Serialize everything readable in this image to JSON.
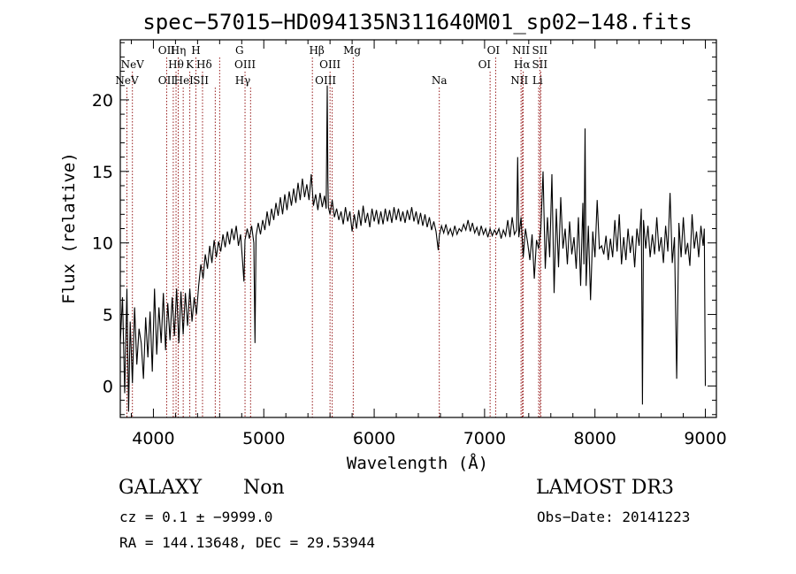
{
  "chart_data": {
    "type": "line",
    "title": "spec−57015−HD094135N311640M01_sp02−148.fits",
    "xlabel": "Wavelength (Å)",
    "ylabel": "Flux (relative)",
    "xlim": [
      3700,
      9100
    ],
    "ylim": [
      -2.2,
      24.2
    ],
    "x_ticks": [
      4000,
      5000,
      6000,
      7000,
      8000,
      9000
    ],
    "y_ticks": [
      0,
      5,
      10,
      15,
      20
    ],
    "grid": false,
    "line_color": "#000000",
    "marker_color": "#8b0000",
    "series": [
      {
        "points": [
          [
            3700,
            3.0
          ],
          [
            3720,
            6.2
          ],
          [
            3740,
            -0.5
          ],
          [
            3760,
            6.8
          ],
          [
            3775,
            -1.8
          ],
          [
            3790,
            4.5
          ],
          [
            3810,
            0.2
          ],
          [
            3830,
            5.5
          ],
          [
            3850,
            1.5
          ],
          [
            3870,
            4.0
          ],
          [
            3890,
            3.0
          ],
          [
            3910,
            0.5
          ],
          [
            3930,
            4.8
          ],
          [
            3950,
            2.0
          ],
          [
            3970,
            5.2
          ],
          [
            3990,
            1.0
          ],
          [
            4010,
            6.8
          ],
          [
            4030,
            2.2
          ],
          [
            4050,
            5.5
          ],
          [
            4070,
            3.0
          ],
          [
            4090,
            6.5
          ],
          [
            4110,
            2.5
          ],
          [
            4130,
            5.8
          ],
          [
            4150,
            3.2
          ],
          [
            4170,
            6.2
          ],
          [
            4190,
            3.5
          ],
          [
            4210,
            6.8
          ],
          [
            4230,
            3.0
          ],
          [
            4250,
            6.6
          ],
          [
            4270,
            3.6
          ],
          [
            4290,
            6.5
          ],
          [
            4310,
            4.2
          ],
          [
            4330,
            6.8
          ],
          [
            4350,
            4.5
          ],
          [
            4370,
            6.2
          ],
          [
            4390,
            5.0
          ],
          [
            4410,
            7.0
          ],
          [
            4430,
            8.5
          ],
          [
            4450,
            7.5
          ],
          [
            4470,
            9.2
          ],
          [
            4490,
            8.2
          ],
          [
            4510,
            9.8
          ],
          [
            4530,
            8.6
          ],
          [
            4550,
            10.2
          ],
          [
            4570,
            9.0
          ],
          [
            4590,
            10.1
          ],
          [
            4610,
            9.4
          ],
          [
            4630,
            10.6
          ],
          [
            4650,
            9.7
          ],
          [
            4670,
            10.8
          ],
          [
            4690,
            9.9
          ],
          [
            4710,
            11.0
          ],
          [
            4730,
            10.2
          ],
          [
            4750,
            11.2
          ],
          [
            4770,
            9.8
          ],
          [
            4790,
            10.6
          ],
          [
            4810,
            8.5
          ],
          [
            4820,
            7.3
          ],
          [
            4830,
            10.2
          ],
          [
            4850,
            11.0
          ],
          [
            4870,
            10.3
          ],
          [
            4890,
            11.2
          ],
          [
            4910,
            10.0
          ],
          [
            4920,
            3.0
          ],
          [
            4930,
            10.5
          ],
          [
            4950,
            11.4
          ],
          [
            4970,
            10.6
          ],
          [
            4990,
            11.6
          ],
          [
            5010,
            10.9
          ],
          [
            5030,
            12.2
          ],
          [
            5050,
            11.2
          ],
          [
            5070,
            12.4
          ],
          [
            5090,
            11.6
          ],
          [
            5110,
            12.8
          ],
          [
            5130,
            11.9
          ],
          [
            5150,
            13.2
          ],
          [
            5170,
            12.0
          ],
          [
            5190,
            13.4
          ],
          [
            5210,
            12.3
          ],
          [
            5230,
            13.6
          ],
          [
            5250,
            12.6
          ],
          [
            5270,
            13.8
          ],
          [
            5290,
            12.8
          ],
          [
            5310,
            14.2
          ],
          [
            5330,
            13.0
          ],
          [
            5350,
            14.5
          ],
          [
            5370,
            13.2
          ],
          [
            5390,
            14.1
          ],
          [
            5410,
            13.0
          ],
          [
            5430,
            14.8
          ],
          [
            5450,
            12.6
          ],
          [
            5470,
            13.4
          ],
          [
            5490,
            12.3
          ],
          [
            5510,
            13.5
          ],
          [
            5530,
            12.5
          ],
          [
            5550,
            13.3
          ],
          [
            5565,
            12.4
          ],
          [
            5575,
            21.0
          ],
          [
            5580,
            14.5
          ],
          [
            5585,
            12.5
          ],
          [
            5600,
            12.0
          ],
          [
            5620,
            13.0
          ],
          [
            5640,
            11.8
          ],
          [
            5660,
            12.4
          ],
          [
            5680,
            11.6
          ],
          [
            5700,
            12.2
          ],
          [
            5720,
            11.3
          ],
          [
            5740,
            12.5
          ],
          [
            5760,
            11.5
          ],
          [
            5780,
            12.2
          ],
          [
            5800,
            10.8
          ],
          [
            5820,
            12.0
          ],
          [
            5840,
            11.0
          ],
          [
            5860,
            12.3
          ],
          [
            5880,
            11.2
          ],
          [
            5900,
            12.6
          ],
          [
            5920,
            11.4
          ],
          [
            5940,
            12.1
          ],
          [
            5960,
            11.1
          ],
          [
            5980,
            12.4
          ],
          [
            6000,
            11.5
          ],
          [
            6020,
            12.3
          ],
          [
            6040,
            11.3
          ],
          [
            6060,
            12.2
          ],
          [
            6080,
            11.3
          ],
          [
            6100,
            12.4
          ],
          [
            6120,
            11.5
          ],
          [
            6140,
            12.3
          ],
          [
            6160,
            11.4
          ],
          [
            6180,
            12.5
          ],
          [
            6200,
            11.6
          ],
          [
            6220,
            12.4
          ],
          [
            6240,
            11.5
          ],
          [
            6260,
            12.2
          ],
          [
            6280,
            11.4
          ],
          [
            6300,
            12.3
          ],
          [
            6320,
            11.6
          ],
          [
            6340,
            12.5
          ],
          [
            6360,
            11.5
          ],
          [
            6380,
            12.2
          ],
          [
            6400,
            11.3
          ],
          [
            6420,
            12.1
          ],
          [
            6440,
            11.2
          ],
          [
            6460,
            12.0
          ],
          [
            6480,
            11.1
          ],
          [
            6500,
            11.8
          ],
          [
            6520,
            10.9
          ],
          [
            6540,
            11.5
          ],
          [
            6560,
            10.8
          ],
          [
            6580,
            9.5
          ],
          [
            6590,
            10.5
          ],
          [
            6610,
            11.2
          ],
          [
            6630,
            10.7
          ],
          [
            6650,
            11.3
          ],
          [
            6670,
            10.6
          ],
          [
            6690,
            11.0
          ],
          [
            6710,
            10.5
          ],
          [
            6730,
            11.2
          ],
          [
            6750,
            10.6
          ],
          [
            6770,
            11.0
          ],
          [
            6790,
            10.8
          ],
          [
            6810,
            11.3
          ],
          [
            6830,
            10.9
          ],
          [
            6850,
            11.6
          ],
          [
            6870,
            10.8
          ],
          [
            6890,
            11.4
          ],
          [
            6910,
            10.7
          ],
          [
            6930,
            11.1
          ],
          [
            6950,
            10.5
          ],
          [
            6970,
            11.2
          ],
          [
            6990,
            10.6
          ],
          [
            7010,
            11.0
          ],
          [
            7030,
            10.4
          ],
          [
            7050,
            11.0
          ],
          [
            7070,
            10.5
          ],
          [
            7090,
            10.9
          ],
          [
            7110,
            10.6
          ],
          [
            7130,
            11.0
          ],
          [
            7150,
            10.3
          ],
          [
            7170,
            10.9
          ],
          [
            7190,
            10.5
          ],
          [
            7210,
            11.6
          ],
          [
            7230,
            10.4
          ],
          [
            7250,
            11.8
          ],
          [
            7270,
            10.6
          ],
          [
            7290,
            10.9
          ],
          [
            7300,
            16.0
          ],
          [
            7310,
            10.4
          ],
          [
            7330,
            11.8
          ],
          [
            7350,
            9.0
          ],
          [
            7370,
            11.0
          ],
          [
            7390,
            10.0
          ],
          [
            7410,
            8.8
          ],
          [
            7430,
            10.6
          ],
          [
            7450,
            7.5
          ],
          [
            7470,
            10.2
          ],
          [
            7490,
            9.6
          ],
          [
            7510,
            11.0
          ],
          [
            7530,
            15.0
          ],
          [
            7550,
            8.2
          ],
          [
            7570,
            11.8
          ],
          [
            7590,
            9.0
          ],
          [
            7610,
            14.8
          ],
          [
            7630,
            6.5
          ],
          [
            7650,
            12.4
          ],
          [
            7670,
            8.3
          ],
          [
            7690,
            13.2
          ],
          [
            7710,
            9.6
          ],
          [
            7730,
            11.0
          ],
          [
            7750,
            8.5
          ],
          [
            7770,
            11.5
          ],
          [
            7790,
            9.2
          ],
          [
            7810,
            10.4
          ],
          [
            7830,
            8.2
          ],
          [
            7850,
            11.8
          ],
          [
            7870,
            7.0
          ],
          [
            7890,
            12.8
          ],
          [
            7900,
            8.5
          ],
          [
            7910,
            18.0
          ],
          [
            7920,
            7.0
          ],
          [
            7940,
            11.2
          ],
          [
            7960,
            6.0
          ],
          [
            7980,
            10.8
          ],
          [
            8000,
            9.0
          ],
          [
            8020,
            13.0
          ],
          [
            8040,
            9.6
          ],
          [
            8060,
            9.8
          ],
          [
            8080,
            9.2
          ],
          [
            8100,
            10.5
          ],
          [
            8120,
            8.8
          ],
          [
            8140,
            10.3
          ],
          [
            8160,
            9.0
          ],
          [
            8180,
            11.6
          ],
          [
            8200,
            9.4
          ],
          [
            8220,
            12.0
          ],
          [
            8240,
            8.5
          ],
          [
            8260,
            10.4
          ],
          [
            8280,
            8.8
          ],
          [
            8300,
            11.0
          ],
          [
            8320,
            9.3
          ],
          [
            8340,
            10.5
          ],
          [
            8360,
            8.3
          ],
          [
            8380,
            11.0
          ],
          [
            8400,
            9.8
          ],
          [
            8420,
            12.4
          ],
          [
            8430,
            -1.3
          ],
          [
            8440,
            11.6
          ],
          [
            8460,
            9.6
          ],
          [
            8480,
            11.2
          ],
          [
            8500,
            9.0
          ],
          [
            8520,
            10.6
          ],
          [
            8540,
            9.2
          ],
          [
            8560,
            11.8
          ],
          [
            8580,
            9.4
          ],
          [
            8600,
            10.4
          ],
          [
            8620,
            8.6
          ],
          [
            8640,
            11.2
          ],
          [
            8660,
            9.4
          ],
          [
            8680,
            13.5
          ],
          [
            8700,
            8.6
          ],
          [
            8720,
            10.4
          ],
          [
            8740,
            0.5
          ],
          [
            8760,
            11.4
          ],
          [
            8780,
            9.0
          ],
          [
            8800,
            11.8
          ],
          [
            8820,
            9.2
          ],
          [
            8840,
            10.0
          ],
          [
            8860,
            8.4
          ],
          [
            8880,
            12.0
          ],
          [
            8900,
            9.6
          ],
          [
            8920,
            10.8
          ],
          [
            8940,
            9.0
          ],
          [
            8960,
            11.2
          ],
          [
            8980,
            9.8
          ],
          [
            8990,
            11.0
          ],
          [
            9000,
            0.0
          ]
        ]
      }
    ],
    "emission_lines": [
      {
        "label": "NeV",
        "row": 2,
        "x": 3760,
        "wl": 3760
      },
      {
        "label": "NeV",
        "row": 1,
        "x": 3810,
        "wl": 3810
      },
      {
        "label": "OII",
        "row": 0,
        "x": 4120,
        "wl": 4120
      },
      {
        "label": "Hη",
        "row": 0,
        "x": 4225,
        "wl": 4225
      },
      {
        "label": "H",
        "row": 0,
        "x": 4385,
        "wl": 4385
      },
      {
        "label": "OII",
        "row": 2,
        "x": 4120,
        "wl": 4180
      },
      {
        "label": "Hθ",
        "row": 1,
        "x": 4205,
        "wl": 4205
      },
      {
        "label": "HeI",
        "row": 2,
        "x": 4275,
        "wl": 4270
      },
      {
        "label": "K",
        "row": 1,
        "x": 4330,
        "wl": 4330
      },
      {
        "label": "Hδ",
        "row": 1,
        "x": 4460,
        "wl": 4445
      },
      {
        "label": "SII",
        "row": 2,
        "x": 4430,
        "wl": 4560
      },
      {
        "label": "G",
        "row": 0,
        "x": 4780,
        "wl": 4600
      },
      {
        "label": "OIII",
        "row": 1,
        "x": 4830,
        "wl": 4830
      },
      {
        "label": "Hγ",
        "row": 2,
        "x": 4810,
        "wl": 4880
      },
      {
        "label": "Hβ",
        "row": 0,
        "x": 5480,
        "wl": 5440
      },
      {
        "label": "OIII",
        "row": 1,
        "x": 5600,
        "wl": 5600
      },
      {
        "label": "OIII",
        "row": 2,
        "x": 5560,
        "wl": 5620
      },
      {
        "label": "Mg",
        "row": 0,
        "x": 5800,
        "wl": 5810
      },
      {
        "label": "Na",
        "row": 2,
        "x": 6590,
        "wl": 6590
      },
      {
        "label": "OI",
        "row": 0,
        "x": 7080,
        "wl": 7100
      },
      {
        "label": "OI",
        "row": 1,
        "x": 7000,
        "wl": 7050
      },
      {
        "label": "NII",
        "row": 0,
        "x": 7330,
        "wl": 7330
      },
      {
        "label": "SII",
        "row": 0,
        "x": 7500,
        "wl": 7500
      },
      {
        "label": "Hα",
        "row": 1,
        "x": 7340,
        "wl": 7350
      },
      {
        "label": "SII",
        "row": 1,
        "x": 7500,
        "wl": 7510
      },
      {
        "label": "NII",
        "row": 2,
        "x": 7315,
        "wl": 7340
      },
      {
        "label": "Li",
        "row": 2,
        "x": 7480,
        "wl": 7490
      }
    ]
  },
  "info": {
    "class": "GALAXY",
    "subclass": "Non",
    "survey": "LAMOST DR3",
    "cz": "cz = 0.1 ± −9999.0",
    "obs_date": "Obs−Date: 20141223",
    "radec": "RA = 144.13648, DEC =  29.53944"
  }
}
